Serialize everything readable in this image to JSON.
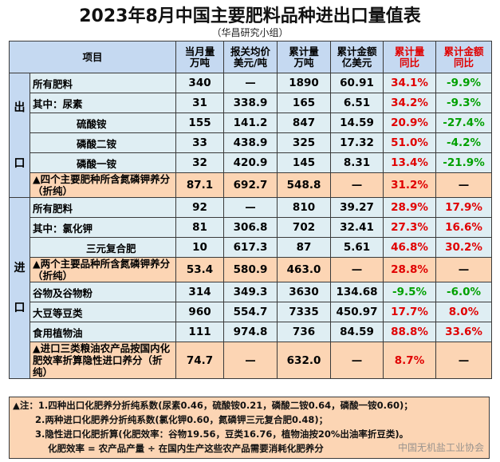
{
  "title": "2023年8月中国主要肥料品种进出口量值表",
  "subtitle": "（华昌研究小组）",
  "headers": {
    "item": "项目",
    "month": [
      "当月量",
      "万吨"
    ],
    "price": [
      "报关均价",
      "美元/吨"
    ],
    "cum_qty": [
      "累计量",
      "万吨"
    ],
    "cum_amt": [
      "累计金额",
      "亿美元"
    ],
    "qty_yoy": [
      "累计量",
      "同比"
    ],
    "amt_yoy": [
      "累计金额",
      "同比"
    ]
  },
  "export": {
    "section": [
      "出",
      "口"
    ],
    "rows": [
      {
        "label": "所有肥料",
        "m": "340",
        "p": "—",
        "cq": "1890",
        "ca": "60.91",
        "qy": "34.1%",
        "ay": "-9.9%"
      },
      {
        "label": "其中：尿素",
        "m": "31",
        "p": "338.9",
        "cq": "165",
        "ca": "6.51",
        "qy": "34.2%",
        "ay": "-9.3%"
      },
      {
        "label": "硫酸铵",
        "m": "155",
        "p": "141.2",
        "cq": "847",
        "ca": "14.59",
        "qy": "20.9%",
        "ay": "-27.4%"
      },
      {
        "label": "磷酸二铵",
        "m": "33",
        "p": "438.9",
        "cq": "325",
        "ca": "17.32",
        "qy": "51.0%",
        "ay": "-4.2%"
      },
      {
        "label": "磷酸一铵",
        "m": "32",
        "p": "420.9",
        "cq": "145",
        "ca": "8.31",
        "qy": "13.4%",
        "ay": "-21.9%"
      },
      {
        "label": "▲四个主要肥种所含氮磷钾养分（折纯）",
        "m": "87.1",
        "p": "692.7",
        "cq": "548.8",
        "ca": "—",
        "qy": "31.2%",
        "ay": "—"
      }
    ]
  },
  "import": {
    "section": [
      "进",
      "口"
    ],
    "rows": [
      {
        "label": "所有肥料",
        "m": "92",
        "p": "—",
        "cq": "810",
        "ca": "39.27",
        "qy": "28.9%",
        "ay": "17.9%"
      },
      {
        "label": "其中：氯化钾",
        "m": "81",
        "p": "306.8",
        "cq": "702",
        "ca": "32.41",
        "qy": "27.3%",
        "ay": "16.6%"
      },
      {
        "label": "三元复合肥",
        "m": "10",
        "p": "617.3",
        "cq": "87",
        "ca": "5.61",
        "qy": "46.8%",
        "ay": "30.2%"
      },
      {
        "label": "▲两个主要品种所含氮磷钾养分（折纯）",
        "m": "53.4",
        "p": "580.9",
        "cq": "463.0",
        "ca": "—",
        "qy": "28.8%",
        "ay": "—"
      },
      {
        "label": "谷物及谷物粉",
        "m": "314",
        "p": "349.3",
        "cq": "3630",
        "ca": "134.68",
        "qy": "-9.5%",
        "ay": "-6.0%"
      },
      {
        "label": "大豆等豆类",
        "m": "960",
        "p": "554.7",
        "cq": "7335",
        "ca": "450.97",
        "qy": "17.7%",
        "ay": "8.0%"
      },
      {
        "label": "食用植物油",
        "m": "111",
        "p": "974.8",
        "cq": "736",
        "ca": "84.59",
        "qy": "88.8%",
        "ay": "33.6%"
      },
      {
        "label": "▲进口三类粮油农产品按国内化肥效率折算隐性进口养分（折纯）",
        "m": "74.7",
        "p": "—",
        "cq": "632.0",
        "ca": "—",
        "qy": "8.7%",
        "ay": "—"
      }
    ]
  },
  "notes": [
    "▲注：1.四种出口化肥养分折纯系数(尿素0.46，硫酸铵0.21，磷酸二铵0.64，磷酸一铵0.60)；",
    "2.两种进口化肥养分折纯系数(氯化钾0.60，氮磷钾三元复合肥0.48)；",
    "3.隐性进口化肥折算(化肥效率：谷物19.56，豆类16.76，植物油按20%出油率折豆类)。",
    "化肥效率 = 农产品产量 ÷ 在国内生产这些农产品需要消耗化肥养分"
  ],
  "watermark": "中国无机盐工业协会",
  "colors": {
    "header_bg": "#c5d9f1",
    "row_bg": "#dfeef3",
    "highlight_bg": "#fcd5b4",
    "pos": "#e00000",
    "neg": "#00a000"
  }
}
